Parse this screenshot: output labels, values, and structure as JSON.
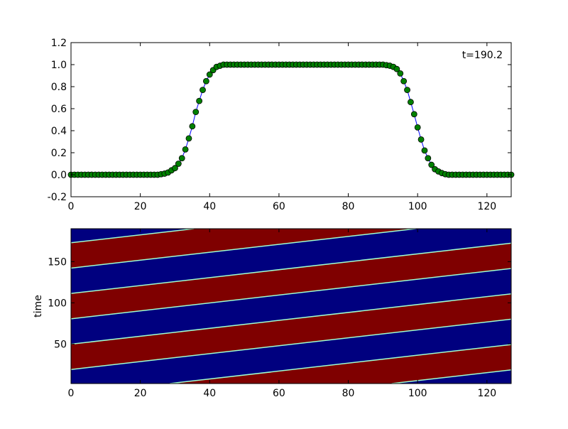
{
  "chart_data": [
    {
      "type": "line",
      "annotation": "t=190.2",
      "x": [
        0,
        1,
        2,
        3,
        4,
        5,
        6,
        7,
        8,
        9,
        10,
        11,
        12,
        13,
        14,
        15,
        16,
        17,
        18,
        19,
        20,
        21,
        22,
        23,
        24,
        25,
        26,
        27,
        28,
        29,
        30,
        31,
        32,
        33,
        34,
        35,
        36,
        37,
        38,
        39,
        40,
        41,
        42,
        43,
        44,
        45,
        46,
        47,
        48,
        49,
        50,
        51,
        52,
        53,
        54,
        55,
        56,
        57,
        58,
        59,
        60,
        61,
        62,
        63,
        64,
        65,
        66,
        67,
        68,
        69,
        70,
        71,
        72,
        73,
        74,
        75,
        76,
        77,
        78,
        79,
        80,
        81,
        82,
        83,
        84,
        85,
        86,
        87,
        88,
        89,
        90,
        91,
        92,
        93,
        94,
        95,
        96,
        97,
        98,
        99,
        100,
        101,
        102,
        103,
        104,
        105,
        106,
        107,
        108,
        109,
        110,
        111,
        112,
        113,
        114,
        115,
        116,
        117,
        118,
        119,
        120,
        121,
        122,
        123,
        124,
        125,
        126,
        127
      ],
      "values": [
        0,
        0,
        0,
        0,
        0,
        0,
        0,
        0,
        0,
        0,
        0,
        0,
        0,
        0,
        0,
        0,
        0,
        0,
        0,
        0,
        0,
        0,
        0,
        0,
        0,
        0,
        0.005,
        0.01,
        0.02,
        0.04,
        0.06,
        0.1,
        0.15,
        0.23,
        0.33,
        0.44,
        0.57,
        0.67,
        0.77,
        0.85,
        0.91,
        0.95,
        0.98,
        0.99,
        1,
        1,
        1,
        1,
        1,
        1,
        1,
        1,
        1,
        1,
        1,
        1,
        1,
        1,
        1,
        1,
        1,
        1,
        1,
        1,
        1,
        1,
        1,
        1,
        1,
        1,
        1,
        1,
        1,
        1,
        1,
        1,
        1,
        1,
        1,
        1,
        1,
        1,
        1,
        1,
        1,
        1,
        1,
        1,
        1,
        1,
        1,
        0.995,
        0.99,
        0.98,
        0.96,
        0.92,
        0.85,
        0.77,
        0.66,
        0.55,
        0.43,
        0.32,
        0.22,
        0.15,
        0.09,
        0.05,
        0.03,
        0.015,
        0.005,
        0,
        0,
        0,
        0,
        0,
        0,
        0,
        0,
        0,
        0,
        0,
        0,
        0,
        0,
        0,
        0,
        0,
        0,
        0
      ],
      "color": "#0000ff",
      "marker_color": "#008000",
      "xlim": [
        0,
        127
      ],
      "xticks": [
        0,
        20,
        40,
        60,
        80,
        100,
        120
      ],
      "ylim": [
        -0.2,
        1.2
      ],
      "yticks": [
        -0.2,
        {
          "value": 0,
          "label": "0.0"
        },
        0.2,
        0.4,
        0.6,
        0.8,
        {
          "value": 1,
          "label": "1.0"
        },
        1.2
      ]
    },
    {
      "type": "image",
      "ylabel": "time",
      "background": "#00007f",
      "color": "#7f0000",
      "front_color": "#9fffd0",
      "bands": [
        [
          [
            28.5,
            2
          ],
          [
            92.5,
            2
          ],
          [
            483.5,
            190
          ],
          [
            419.5,
            190
          ]
        ],
        [
          [
            -99.5,
            2
          ],
          [
            -35.5,
            2
          ],
          [
            355.5,
            190
          ],
          [
            291.5,
            190
          ]
        ],
        [
          [
            -227.5,
            2
          ],
          [
            -163.5,
            2
          ],
          [
            227.5,
            190
          ],
          [
            163.5,
            190
          ]
        ],
        [
          [
            -355.5,
            2
          ],
          [
            -291.5,
            2
          ],
          [
            99.5,
            190
          ],
          [
            35.5,
            190
          ]
        ]
      ],
      "xlim": [
        0,
        127
      ],
      "xticks": [
        0,
        20,
        40,
        60,
        80,
        100,
        120
      ],
      "ylim": [
        2,
        190
      ],
      "yticks": [
        50,
        100,
        150
      ]
    }
  ]
}
